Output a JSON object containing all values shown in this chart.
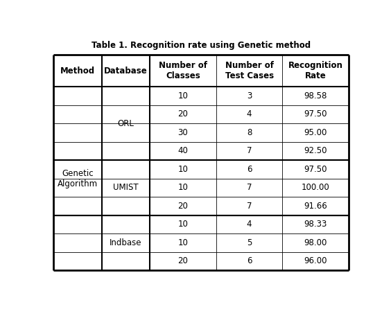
{
  "title": "Table 1. Recognition rate using Genetic method",
  "title_fontsize": 8.5,
  "col_headers": [
    "Method",
    "Database",
    "Number of\nClasses",
    "Number of\nTest Cases",
    "Recognition\nRate"
  ],
  "data_fontsize": 8.5,
  "header_fontsize": 8.5,
  "rows": [
    [
      "10",
      "3",
      "98.58"
    ],
    [
      "20",
      "4",
      "97.50"
    ],
    [
      "30",
      "8",
      "95.00"
    ],
    [
      "40",
      "7",
      "92.50"
    ],
    [
      "10",
      "6",
      "97.50"
    ],
    [
      "10",
      "7",
      "100.00"
    ],
    [
      "20",
      "7",
      "91.66"
    ],
    [
      "10",
      "4",
      "98.33"
    ],
    [
      "10",
      "5",
      "98.00"
    ],
    [
      "20",
      "6",
      "96.00"
    ]
  ],
  "method_label": "Genetic\nAlgorithm",
  "db_labels": [
    {
      "name": "ORL",
      "start": 0,
      "end": 3
    },
    {
      "name": "UMIST",
      "start": 4,
      "end": 6
    },
    {
      "name": "Indbase",
      "start": 7,
      "end": 9
    }
  ],
  "thick_sep_after_data_rows": [
    3,
    6
  ],
  "background_color": "#ffffff",
  "outer_lw": 2.0,
  "thick_lw": 1.5,
  "thin_lw": 0.6
}
